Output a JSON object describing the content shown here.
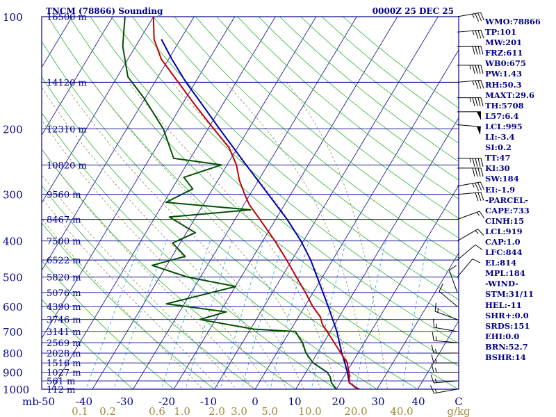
{
  "header": {
    "station": "TNCM (78866) Sounding",
    "valid_time": "0000Z 25 DEC 25"
  },
  "indices": [
    "WMO:78866",
    "TP:101",
    "MW:201",
    "FRZ:611",
    "WB0:675",
    "PW:1.43",
    "RH:50.3",
    "MAXT:29.6",
    "TH:5708",
    "L57:6.4",
    "LCL:995",
    "LI:-3.4",
    "SI:0.2",
    "TT:47",
    "KI:30",
    "SW:184",
    "EI:-1.9",
    "-PARCEL-",
    "CAPE:733",
    "CINH:15",
    "LCL:919",
    "CAP:1.0",
    "LFC:844",
    "EL:814",
    "MPL:184",
    "-WIND-",
    "STM:31/11",
    "HEL:-11",
    "SHR+:0.0",
    "SRDS:151",
    "EHI:0.0",
    "BRN:52.7",
    "BSHR:14"
  ],
  "colors": {
    "frame": "#00008b",
    "isobar": "#00008b",
    "isotherm": "#00008b",
    "dry_adiabat": "#2db52d",
    "moist_adiabat": "#8a8a5a",
    "mixing_ratio": "#3fa9e0",
    "temperature": "#c00000",
    "dewpoint": "#005000",
    "parcel": "#0000b0",
    "mixing_label": "#a08a3a"
  },
  "chart_data": {
    "type": "skew-t",
    "pressure_axis": {
      "label": "mb",
      "ticks": [
        100,
        200,
        300,
        400,
        500,
        600,
        700,
        800,
        900,
        1000
      ],
      "range": [
        1000,
        100
      ],
      "scale": "log"
    },
    "temperature_axis": {
      "ticks": [
        -50,
        -40,
        -30,
        -20,
        -10,
        0,
        10,
        20,
        30,
        40
      ],
      "tick_labels": [
        "-50",
        "-40",
        "-30",
        "-20",
        "-10",
        "0",
        "10",
        "20",
        "30",
        "40"
      ],
      "unit_label": "C",
      "range": [
        -50,
        50
      ]
    },
    "mixing_ratio_axis": {
      "ticks": [
        0.1,
        0.2,
        0.6,
        1.0,
        2.0,
        3.0,
        5.0,
        10.0,
        20.0,
        40.0
      ],
      "tick_labels": [
        "0.1",
        "0.2",
        "0.6",
        "1.0",
        "2.0",
        "3.0",
        "5.0",
        "10.0",
        "20.0",
        "40.0"
      ],
      "unit_label": "g/kg"
    },
    "heights": [
      {
        "p": 100,
        "label": "16500 m"
      },
      {
        "p": 150,
        "label": "14120 m"
      },
      {
        "p": 200,
        "label": "12310 m"
      },
      {
        "p": 250,
        "label": "10820 m"
      },
      {
        "p": 300,
        "label": "9560 m"
      },
      {
        "p": 350,
        "label": "8467 m"
      },
      {
        "p": 400,
        "label": "7500 m"
      },
      {
        "p": 450,
        "label": "6522 m"
      },
      {
        "p": 500,
        "label": "5820 m"
      },
      {
        "p": 550,
        "label": "5076 m"
      },
      {
        "p": 600,
        "label": "4390 m"
      },
      {
        "p": 650,
        "label": "3746 m"
      },
      {
        "p": 700,
        "label": "3141 m"
      },
      {
        "p": 750,
        "label": "2569 m"
      },
      {
        "p": 800,
        "label": "2028 m"
      },
      {
        "p": 850,
        "label": "1516 m"
      },
      {
        "p": 900,
        "label": "1027 m"
      },
      {
        "p": 950,
        "label": "561 m"
      },
      {
        "p": 1000,
        "label": "112 m"
      }
    ],
    "temperature": [
      {
        "p": 1013,
        "t": 27.0
      },
      {
        "p": 990,
        "t": 24.5
      },
      {
        "p": 960,
        "t": 22.2
      },
      {
        "p": 920,
        "t": 21.2
      },
      {
        "p": 850,
        "t": 18.8
      },
      {
        "p": 800,
        "t": 15.8
      },
      {
        "p": 750,
        "t": 12.6
      },
      {
        "p": 700,
        "t": 9.2
      },
      {
        "p": 670,
        "t": 7.0
      },
      {
        "p": 640,
        "t": 5.4
      },
      {
        "p": 600,
        "t": 2.0
      },
      {
        "p": 550,
        "t": -1.9
      },
      {
        "p": 500,
        "t": -6.4
      },
      {
        "p": 450,
        "t": -11.3
      },
      {
        "p": 400,
        "t": -17.0
      },
      {
        "p": 350,
        "t": -23.9
      },
      {
        "p": 320,
        "t": -28.6
      },
      {
        "p": 300,
        "t": -31.3
      },
      {
        "p": 275,
        "t": -34.7
      },
      {
        "p": 250,
        "t": -37.7
      },
      {
        "p": 225,
        "t": -42.0
      },
      {
        "p": 200,
        "t": -48.6
      },
      {
        "p": 175,
        "t": -56.0
      },
      {
        "p": 150,
        "t": -64.2
      },
      {
        "p": 130,
        "t": -71.8
      },
      {
        "p": 115,
        "t": -76.5
      },
      {
        "p": 100,
        "t": -80.0
      }
    ],
    "dewpoint": [
      {
        "p": 1013,
        "t": 21.5
      },
      {
        "p": 1000,
        "t": 20.0
      },
      {
        "p": 960,
        "t": 17.8
      },
      {
        "p": 925,
        "t": 16.6
      },
      {
        "p": 900,
        "t": 15.2
      },
      {
        "p": 850,
        "t": 10.4
      },
      {
        "p": 800,
        "t": 7.2
      },
      {
        "p": 750,
        "t": 4.8
      },
      {
        "p": 700,
        "t": 1.4
      },
      {
        "p": 690,
        "t": -9.1
      },
      {
        "p": 650,
        "t": -23.9
      },
      {
        "p": 620,
        "t": -18.5
      },
      {
        "p": 590,
        "t": -34.4
      },
      {
        "p": 530,
        "t": -19.9
      },
      {
        "p": 500,
        "t": -33.2
      },
      {
        "p": 465,
        "t": -43.6
      },
      {
        "p": 440,
        "t": -36.8
      },
      {
        "p": 405,
        "t": -41.9
      },
      {
        "p": 380,
        "t": -37.8
      },
      {
        "p": 345,
        "t": -46.5
      },
      {
        "p": 330,
        "t": -27.6
      },
      {
        "p": 315,
        "t": -49.5
      },
      {
        "p": 290,
        "t": -44.9
      },
      {
        "p": 270,
        "t": -48.8
      },
      {
        "p": 250,
        "t": -41.4
      },
      {
        "p": 240,
        "t": -54.1
      },
      {
        "p": 200,
        "t": -61.0
      },
      {
        "p": 165,
        "t": -70.4
      },
      {
        "p": 145,
        "t": -77.4
      },
      {
        "p": 120,
        "t": -83.2
      },
      {
        "p": 100,
        "t": -87.0
      }
    ],
    "parcel": [
      {
        "p": 1013,
        "t": 27.0
      },
      {
        "p": 990,
        "t": 24.6
      },
      {
        "p": 960,
        "t": 22.2
      },
      {
        "p": 930,
        "t": 21.2
      },
      {
        "p": 900,
        "t": 20.2
      },
      {
        "p": 850,
        "t": 18.2
      },
      {
        "p": 800,
        "t": 16.0
      },
      {
        "p": 700,
        "t": 11.6
      },
      {
        "p": 600,
        "t": 5.8
      },
      {
        "p": 500,
        "t": -1.3
      },
      {
        "p": 450,
        "t": -5.4
      },
      {
        "p": 400,
        "t": -10.6
      },
      {
        "p": 350,
        "t": -17.2
      },
      {
        "p": 300,
        "t": -25.5
      },
      {
        "p": 250,
        "t": -35.3
      },
      {
        "p": 200,
        "t": -47.2
      },
      {
        "p": 170,
        "t": -55.7
      },
      {
        "p": 150,
        "t": -62.3
      },
      {
        "p": 130,
        "t": -69.2
      },
      {
        "p": 115,
        "t": -74.7
      }
    ],
    "winds": [
      {
        "p": 100,
        "dir": 260,
        "spd": 35
      },
      {
        "p": 110,
        "dir": 265,
        "spd": 35
      },
      {
        "p": 120,
        "dir": 270,
        "spd": 40
      },
      {
        "p": 135,
        "dir": 270,
        "spd": 45
      },
      {
        "p": 150,
        "dir": 265,
        "spd": 35
      },
      {
        "p": 165,
        "dir": 270,
        "spd": 45
      },
      {
        "p": 180,
        "dir": 270,
        "spd": 50
      },
      {
        "p": 195,
        "dir": 275,
        "spd": 50
      },
      {
        "p": 240,
        "dir": 270,
        "spd": 45
      },
      {
        "p": 255,
        "dir": 270,
        "spd": 40
      },
      {
        "p": 285,
        "dir": 260,
        "spd": 35
      },
      {
        "p": 300,
        "dir": 265,
        "spd": 30
      },
      {
        "p": 350,
        "dir": 250,
        "spd": 15
      },
      {
        "p": 400,
        "dir": 240,
        "spd": 15
      },
      {
        "p": 450,
        "dir": 230,
        "spd": 10
      },
      {
        "p": 500,
        "dir": 220,
        "spd": 10
      },
      {
        "p": 550,
        "dir": 160,
        "spd": 10
      },
      {
        "p": 600,
        "dir": 130,
        "spd": 10
      },
      {
        "p": 650,
        "dir": 110,
        "spd": 15
      },
      {
        "p": 700,
        "dir": 100,
        "spd": 15
      },
      {
        "p": 750,
        "dir": 95,
        "spd": 15
      },
      {
        "p": 800,
        "dir": 90,
        "spd": 15
      },
      {
        "p": 850,
        "dir": 90,
        "spd": 15
      },
      {
        "p": 900,
        "dir": 90,
        "spd": 15
      },
      {
        "p": 950,
        "dir": 85,
        "spd": 15
      },
      {
        "p": 1000,
        "dir": 80,
        "spd": 15
      }
    ]
  }
}
